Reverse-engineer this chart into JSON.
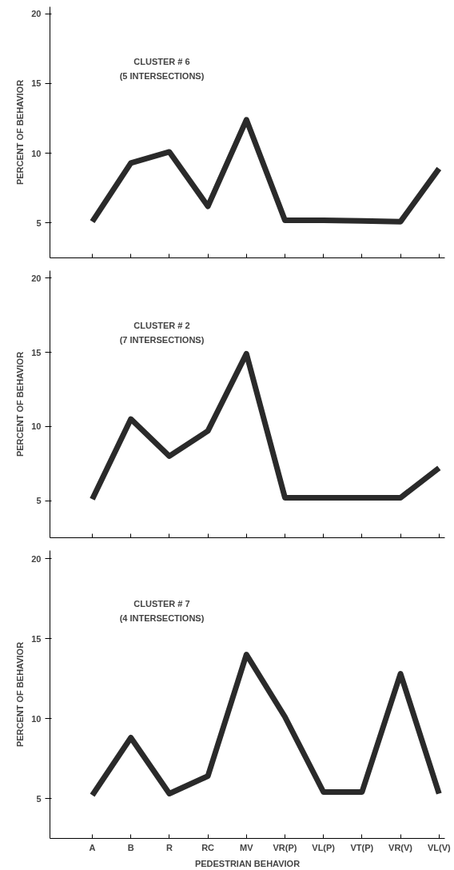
{
  "chart_data": [
    {
      "type": "line",
      "ylabel": "PERCENT OF BEHAVIOR",
      "annotations": [
        "CLUSTER # 6",
        "(5 INTERSECTIONS)"
      ],
      "categories": [
        null,
        null,
        null,
        null,
        null,
        null,
        null,
        null,
        null,
        null
      ],
      "series": [
        {
          "color": "#2a2a2a",
          "values": [
            5.1,
            9.3,
            10.1,
            6.2,
            12.4,
            5.2,
            5.2,
            5.15,
            5.1,
            8.9
          ]
        }
      ],
      "ylim": [
        2.5,
        20.5
      ],
      "yticks": [
        5,
        10,
        15,
        20
      ],
      "grid": false,
      "marker": "none",
      "line_style": "solid"
    },
    {
      "type": "line",
      "ylabel": "PERCENT OF BEHAVIOR",
      "annotations": [
        "CLUSTER # 2",
        "(7 INTERSECTIONS)"
      ],
      "categories": [
        null,
        null,
        null,
        null,
        null,
        null,
        null,
        null,
        null,
        null
      ],
      "series": [
        {
          "color": "#2a2a2a",
          "values": [
            5.1,
            10.5,
            8.0,
            9.7,
            14.9,
            5.2,
            5.2,
            5.2,
            5.2,
            7.2
          ]
        }
      ],
      "ylim": [
        2.5,
        20.5
      ],
      "yticks": [
        5,
        10,
        15,
        20
      ],
      "grid": false,
      "marker": "none",
      "line_style": "solid"
    },
    {
      "type": "line",
      "xlabel": "PEDESTRIAN BEHAVIOR",
      "ylabel": "PERCENT OF BEHAVIOR",
      "annotations": [
        "CLUSTER # 7",
        "(4 INTERSECTIONS)"
      ],
      "categories": [
        "A",
        "B",
        "R",
        "RC",
        "MV",
        "VR(P)",
        "VL(P)",
        "VT(P)",
        "VR(V)",
        "VL(V)"
      ],
      "series": [
        {
          "color": "#2a2a2a",
          "values": [
            5.2,
            8.8,
            5.3,
            6.4,
            14.0,
            10.1,
            5.4,
            5.4,
            12.8,
            5.3
          ]
        }
      ],
      "ylim": [
        2.5,
        20.5
      ],
      "yticks": [
        5,
        10,
        15,
        20
      ],
      "grid": false,
      "marker": "none",
      "line_style": "solid"
    }
  ]
}
